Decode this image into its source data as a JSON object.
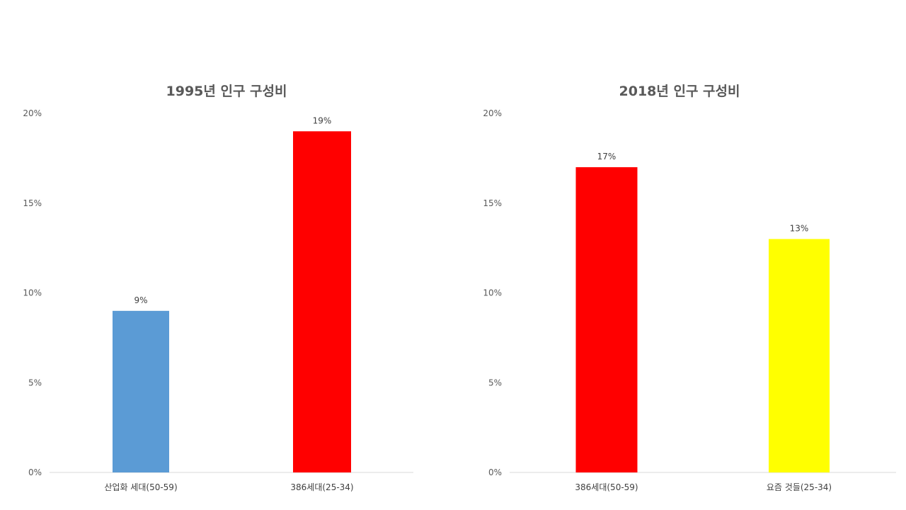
{
  "chart_data": [
    {
      "type": "bar",
      "title": "1995년 인구 구성비",
      "categories": [
        "산업화 세대(50-59)",
        "386세대(25-34)"
      ],
      "values": [
        9,
        19
      ],
      "data_labels": [
        "9%",
        "19%"
      ],
      "colors": [
        "#5B9BD5",
        "#FF0000"
      ],
      "ylim": [
        0,
        20
      ],
      "yticks": [
        0,
        5,
        10,
        15,
        20
      ],
      "ytick_labels": [
        "0%",
        "5%",
        "10%",
        "15%",
        "20%"
      ],
      "grid": false,
      "legend": "none"
    },
    {
      "type": "bar",
      "title": "2018년 인구 구성비",
      "categories": [
        "386세대(50-59)",
        "요즘 것들(25-34)"
      ],
      "values": [
        17,
        13
      ],
      "data_labels": [
        "17%",
        "13%"
      ],
      "colors": [
        "#FF0000",
        "#FFFF00"
      ],
      "ylim": [
        0,
        20
      ],
      "yticks": [
        0,
        5,
        10,
        15,
        20
      ],
      "ytick_labels": [
        "0%",
        "5%",
        "10%",
        "15%",
        "20%"
      ],
      "grid": false,
      "legend": "none"
    }
  ]
}
